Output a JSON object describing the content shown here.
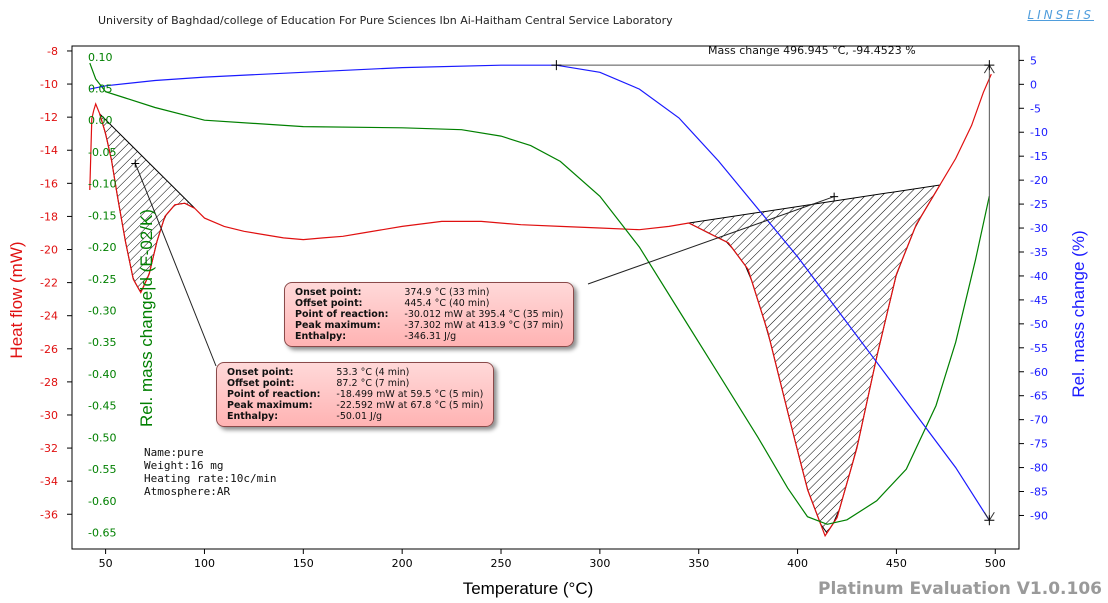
{
  "header": {
    "title": "University of Baghdad/college of Education For Pure Sciences Ibn Ai-Haitham Central Service Laboratory",
    "brand": "LINSEIS"
  },
  "mass_change_readout": "Mass change 496.945 °C,  -94.4523 %",
  "footer": {
    "version": "Platinum Evaluation V1.0.106"
  },
  "sample_info": {
    "name": "Name:pure",
    "weight": "Weight:16 mg",
    "heating_rate": "Heating rate:10c/min",
    "atmosphere": "Atmosphere:AR"
  },
  "peak_callouts": [
    {
      "rows": [
        {
          "label": "Onset point:",
          "value": "374.9 °C (33 min)"
        },
        {
          "label": "Offset point:",
          "value": "445.4 °C (40 min)"
        },
        {
          "label": "Point of reaction:",
          "value": "-30.012 mW at 395.4 °C (35 min)"
        },
        {
          "label": "Peak maximum:",
          "value": "-37.302 mW at 413.9 °C (37 min)"
        },
        {
          "label": "Enthalpy:",
          "value": "-346.31 J/g"
        }
      ]
    },
    {
      "rows": [
        {
          "label": "Onset point:",
          "value": "53.3 °C (4 min)"
        },
        {
          "label": "Offset point:",
          "value": "87.2 °C (7 min)"
        },
        {
          "label": "Point of reaction:",
          "value": "-18.499 mW at 59.5 °C (5 min)"
        },
        {
          "label": "Peak maximum:",
          "value": "-22.592 mW at 67.8 °C (5 min)"
        },
        {
          "label": "Enthalpy:",
          "value": "-50.01 J/g"
        }
      ]
    }
  ],
  "chart_data": {
    "type": "line",
    "xlabel": "Temperature (°C)",
    "xlim": [
      33,
      512
    ],
    "x_ticks": [
      50,
      100,
      150,
      200,
      250,
      300,
      350,
      400,
      450,
      500
    ],
    "axes": {
      "heat_flow": {
        "label": "Heat flow (mW)",
        "color": "#e01010",
        "ylim": [
          -38.1,
          -7.7
        ],
        "ticks": [
          -8,
          -10,
          -12,
          -14,
          -16,
          -18,
          -20,
          -22,
          -24,
          -26,
          -28,
          -30,
          -32,
          -34,
          -36
        ]
      },
      "dtg": {
        "label": "Rel. mass change|d (E-02/K)",
        "color": "#008000",
        "ylim": [
          -0.676,
          0.117
        ],
        "ticks": [
          0.1,
          0.05,
          0.0,
          -0.05,
          -0.1,
          -0.15,
          -0.2,
          -0.25,
          -0.3,
          -0.35,
          -0.4,
          -0.45,
          -0.5,
          -0.55,
          -0.6,
          -0.65
        ],
        "tick_labels": [
          "0.10",
          "0.05",
          "0.00",
          "-0.05",
          "-0.10",
          "-0.15",
          "-0.20",
          "-0.25",
          "-0.30",
          "-0.35",
          "-0.40",
          "-0.45",
          "-0.50",
          "-0.55",
          "-0.60",
          "-0.65"
        ]
      },
      "tg": {
        "label": "Rel. mass change (%)",
        "color": "#1a1aff",
        "ylim": [
          -97,
          8
        ],
        "ticks": [
          5,
          0,
          -5,
          -10,
          -15,
          -20,
          -25,
          -30,
          -35,
          -40,
          -45,
          -50,
          -55,
          -60,
          -65,
          -70,
          -75,
          -80,
          -85,
          -90
        ]
      }
    },
    "series": [
      {
        "name": "Heat flow",
        "axis": "heat_flow",
        "color": "#e01010",
        "x": [
          42,
          43,
          44,
          45,
          47,
          50,
          53,
          56,
          60,
          64,
          67.8,
          72,
          76,
          80,
          85,
          90,
          95,
          100,
          110,
          120,
          130,
          140,
          150,
          160,
          170,
          180,
          200,
          220,
          240,
          260,
          280,
          300,
          320,
          335,
          345,
          355,
          365,
          375,
          385,
          395.4,
          405,
          413.9,
          420,
          430,
          440,
          450,
          460,
          470,
          480,
          488,
          494,
          498
        ],
        "y": [
          -16.4,
          -12.1,
          -11.6,
          -11.2,
          -11.8,
          -13.0,
          -14.6,
          -16.8,
          -19.5,
          -21.8,
          -22.6,
          -21.5,
          -19.5,
          -18.0,
          -17.3,
          -17.2,
          -17.5,
          -18.1,
          -18.6,
          -18.9,
          -19.1,
          -19.3,
          -19.4,
          -19.3,
          -19.2,
          -19.0,
          -18.6,
          -18.3,
          -18.3,
          -18.5,
          -18.6,
          -18.7,
          -18.8,
          -18.6,
          -18.4,
          -19.0,
          -19.6,
          -21.2,
          -25.0,
          -30.0,
          -34.5,
          -37.3,
          -36.2,
          -32.0,
          -26.5,
          -21.5,
          -18.5,
          -16.5,
          -14.5,
          -12.5,
          -10.5,
          -9.4
        ]
      },
      {
        "name": "Rel. mass change|d",
        "axis": "dtg",
        "color": "#008000",
        "x": [
          42,
          45,
          50,
          60,
          75,
          100,
          150,
          200,
          230,
          250,
          265,
          280,
          300,
          320,
          340,
          360,
          380,
          395,
          405,
          415,
          425,
          440,
          455,
          470,
          480,
          490,
          497
        ],
        "y": [
          0.09,
          0.065,
          0.045,
          0.035,
          0.02,
          0.0,
          -0.01,
          -0.012,
          -0.015,
          -0.025,
          -0.04,
          -0.065,
          -0.12,
          -0.2,
          -0.3,
          -0.4,
          -0.5,
          -0.58,
          -0.625,
          -0.637,
          -0.63,
          -0.6,
          -0.55,
          -0.45,
          -0.35,
          -0.22,
          -0.12
        ]
      },
      {
        "name": "Rel. mass change",
        "axis": "tg",
        "color": "#1a1aff",
        "x": [
          42,
          50,
          75,
          100,
          150,
          200,
          250,
          278,
          300,
          320,
          340,
          360,
          380,
          400,
          420,
          440,
          460,
          480,
          497
        ],
        "y": [
          -1.0,
          -0.3,
          0.8,
          1.5,
          2.5,
          3.5,
          4.0,
          4.0,
          2.5,
          -1.0,
          -7.0,
          -16.0,
          -26.0,
          -36.0,
          -47.0,
          -58.0,
          -69.0,
          -80.0,
          -91.0
        ]
      }
    ],
    "mass_change_marker": {
      "x1": 278,
      "x2": 497,
      "y_top": 4.0,
      "y_bottom": -91.0
    },
    "hatched_peaks": [
      {
        "onset": 47,
        "offset": 95,
        "series": "Heat flow"
      },
      {
        "onset": 345,
        "offset": 472,
        "series": "Heat flow"
      }
    ]
  }
}
